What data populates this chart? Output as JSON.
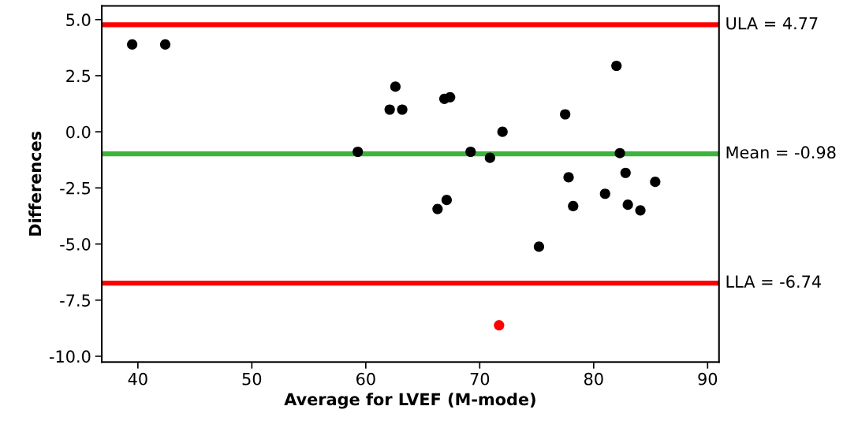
{
  "chart_data": {
    "type": "scatter",
    "xlabel": "Average for LVEF (M-mode)",
    "ylabel": "Differences",
    "xlim": [
      36.83,
      91.0
    ],
    "ylim": [
      -10.26,
      5.61
    ],
    "xticks": [
      40,
      50,
      60,
      70,
      80,
      90
    ],
    "yticks": [
      {
        "value": 5,
        "label": "5.0"
      },
      {
        "value": 2.5,
        "label": "2.5"
      },
      {
        "value": 0,
        "label": "0.0"
      },
      {
        "value": -2.5,
        "label": "-2.5"
      },
      {
        "value": -5,
        "label": "-5.0"
      },
      {
        "value": -7.5,
        "label": "-7.5"
      },
      {
        "value": -10,
        "label": "-10.0"
      }
    ],
    "marker": "circle",
    "grid": false,
    "series": [
      {
        "color": "#000000",
        "x": [
          39.5,
          42.4,
          59.3,
          62.1,
          62.6,
          63.2,
          66.9,
          67.4,
          66.3,
          67.1,
          69.2,
          70.9,
          72.0,
          77.5,
          77.8,
          78.2,
          75.2,
          81.0,
          82.0,
          82.3,
          82.8,
          83.0,
          84.1,
          85.4
        ],
        "values": [
          3.89,
          3.89,
          -0.89,
          0.99,
          2.01,
          0.99,
          1.47,
          1.54,
          -3.44,
          -3.04,
          -0.89,
          -1.16,
          0.0,
          0.78,
          -2.03,
          -3.31,
          -5.12,
          -2.76,
          2.94,
          -0.95,
          -1.83,
          -3.25,
          -3.5,
          -2.23
        ]
      },
      {
        "color": "#ff0000",
        "x": [
          71.7
        ],
        "values": [
          -8.62
        ]
      }
    ],
    "ref_lines": [
      {
        "axis": "y",
        "value": 4.77,
        "label": "ULA = 4.77",
        "color": "#ff0000",
        "line_style": "solid"
      },
      {
        "axis": "y",
        "value": -0.98,
        "label": "Mean = -0.98",
        "color": "#3cb43c",
        "line_style": "solid"
      },
      {
        "axis": "y",
        "value": -6.74,
        "label": "LLA = -6.74",
        "color": "#ff0000",
        "line_style": "solid"
      }
    ]
  }
}
